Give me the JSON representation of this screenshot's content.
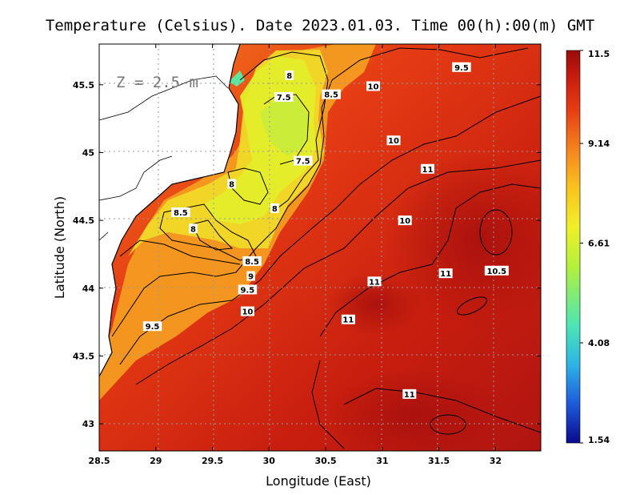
{
  "chart_data": {
    "type": "heatmap",
    "title": "Temperature (Celsius). Date 2023.01.03. Time 00(h):00(m) GMT",
    "annotation": "Z = 2.5 m",
    "xlabel": "Longitude (East)",
    "ylabel": "Latitude (North)",
    "xlim": [
      28.5,
      32.4
    ],
    "ylim": [
      42.8,
      45.8
    ],
    "x_ticks": [
      "28.5",
      "29",
      "29.5",
      "30",
      "30.5",
      "31",
      "31.5",
      "32"
    ],
    "x_tick_values": [
      28.5,
      29,
      29.5,
      30,
      30.5,
      31,
      31.5,
      32
    ],
    "y_ticks": [
      "43",
      "43.5",
      "44",
      "44.5",
      "45",
      "45.5"
    ],
    "y_tick_values": [
      43,
      43.5,
      44,
      44.5,
      45,
      45.5
    ],
    "grid": true,
    "colorbar": {
      "min": 1.54,
      "max": 11.5,
      "tick_labels": [
        "11.5",
        "9.14",
        "6.61",
        "4.08",
        "1.54"
      ],
      "tick_values": [
        11.5,
        9.14,
        6.61,
        4.08,
        1.54
      ],
      "colors": [
        "#0a0a8c",
        "#1e5adc",
        "#2eb4e6",
        "#4ce6b4",
        "#b4f03c",
        "#f0f028",
        "#fac31e",
        "#f5821e",
        "#e63c14",
        "#c81e0f",
        "#9b0a0a"
      ]
    },
    "contour_labels": [
      {
        "text": "9.5",
        "lon": 31.7,
        "lat": 45.63
      },
      {
        "text": "8",
        "lon": 30.18,
        "lat": 45.57
      },
      {
        "text": "8.5",
        "lon": 30.55,
        "lat": 45.43
      },
      {
        "text": "10",
        "lon": 30.92,
        "lat": 45.49
      },
      {
        "text": "7.5",
        "lon": 30.13,
        "lat": 45.41
      },
      {
        "text": "10",
        "lon": 31.1,
        "lat": 45.09
      },
      {
        "text": "7.5",
        "lon": 30.3,
        "lat": 44.94
      },
      {
        "text": "11",
        "lon": 31.4,
        "lat": 44.88
      },
      {
        "text": "8",
        "lon": 29.67,
        "lat": 44.77
      },
      {
        "text": "8",
        "lon": 30.05,
        "lat": 44.59
      },
      {
        "text": "8.5",
        "lon": 29.22,
        "lat": 44.56
      },
      {
        "text": "8",
        "lon": 29.33,
        "lat": 44.44
      },
      {
        "text": "10",
        "lon": 31.2,
        "lat": 44.5
      },
      {
        "text": "8.5",
        "lon": 29.85,
        "lat": 44.2
      },
      {
        "text": "9",
        "lon": 29.84,
        "lat": 44.09
      },
      {
        "text": "11",
        "lon": 31.56,
        "lat": 44.11
      },
      {
        "text": "10.5",
        "lon": 32.01,
        "lat": 44.13
      },
      {
        "text": "11",
        "lon": 30.93,
        "lat": 44.05
      },
      {
        "text": "9.5",
        "lon": 29.81,
        "lat": 43.99
      },
      {
        "text": "10",
        "lon": 29.81,
        "lat": 43.83
      },
      {
        "text": "9.5",
        "lon": 28.97,
        "lat": 43.72
      },
      {
        "text": "11",
        "lon": 30.7,
        "lat": 43.77
      },
      {
        "text": "11",
        "lon": 31.24,
        "lat": 43.22
      }
    ]
  }
}
